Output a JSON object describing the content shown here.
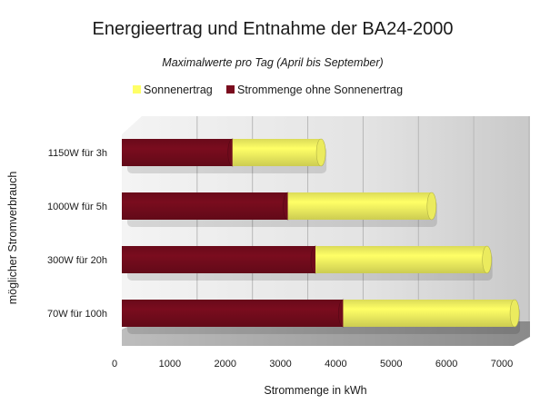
{
  "chart_data": {
    "type": "bar",
    "orientation": "horizontal",
    "stacked": true,
    "title": "Energieertrag und Entnahme der BA24-2000",
    "subtitle": "Maximalwerte pro Tag (April bis September)",
    "xlabel": "Strommenge in kWh",
    "ylabel": "möglicher Stromverbrauch",
    "categories": [
      "1150W für 3h",
      "1000W für 5h",
      "300W für 20h",
      "70W für 100h"
    ],
    "series": [
      {
        "name": "Strommenge ohne Sonnenertrag",
        "color": "#7a0c1e",
        "values": [
          2000,
          3000,
          3500,
          4000
        ]
      },
      {
        "name": "Sonnenertrag",
        "color": "#ffff66",
        "values": [
          1600,
          2600,
          3100,
          3100
        ]
      }
    ],
    "legend_order": [
      "Sonnenertrag",
      "Strommenge ohne Sonnenertrag"
    ],
    "legend_position": "top",
    "xlim": [
      0,
      7000
    ],
    "xticks": [
      "0",
      "1000",
      "2000",
      "3000",
      "4000",
      "5000",
      "6000",
      "7000"
    ],
    "grid": true,
    "style": "3d-cylinder"
  }
}
